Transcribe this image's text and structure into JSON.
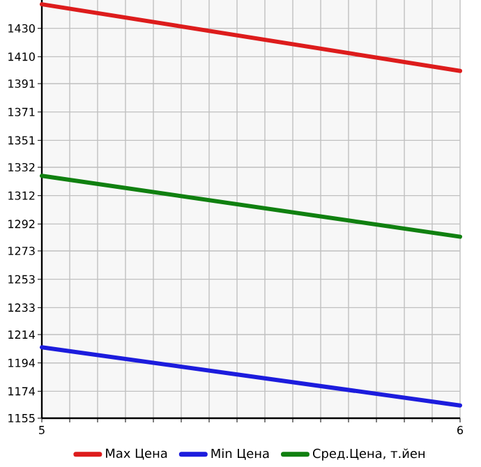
{
  "chart_data": {
    "type": "line",
    "x": [
      5,
      6
    ],
    "series": [
      {
        "name": "Max Цена",
        "color": "#dd1c1c",
        "values": [
          1447,
          1400
        ]
      },
      {
        "name": "Min Цена",
        "color": "#1c1cdd",
        "values": [
          1205,
          1164
        ]
      },
      {
        "name": "Сред.Цена, т.йен",
        "color": "#108010",
        "values": [
          1326,
          1283
        ]
      }
    ],
    "xlim": [
      5,
      6
    ],
    "xticks": [
      5,
      {
        "value": 5.0667,
        "label": null
      },
      {
        "value": 5.1333,
        "label": null
      },
      {
        "value": 5.2,
        "label": null
      },
      {
        "value": 5.2667,
        "label": null
      },
      {
        "value": 5.3333,
        "label": null
      },
      {
        "value": 5.4,
        "label": null
      },
      {
        "value": 5.4667,
        "label": null
      },
      {
        "value": 5.5333,
        "label": null
      },
      {
        "value": 5.6,
        "label": null
      },
      {
        "value": 5.6667,
        "label": null
      },
      {
        "value": 5.7333,
        "label": null
      },
      {
        "value": 5.8,
        "label": null
      },
      {
        "value": 5.8667,
        "label": null
      },
      {
        "value": 5.9333,
        "label": null
      },
      6
    ],
    "ylim": [
      1155,
      1450
    ],
    "yticks": [
      1155,
      1174,
      1194,
      1214,
      1233,
      1253,
      1273,
      1292,
      1312,
      1332,
      1351,
      1371,
      1391,
      1410,
      1430
    ],
    "grid": true,
    "legend": "bottom",
    "marker": "none",
    "line_style": "solid"
  }
}
